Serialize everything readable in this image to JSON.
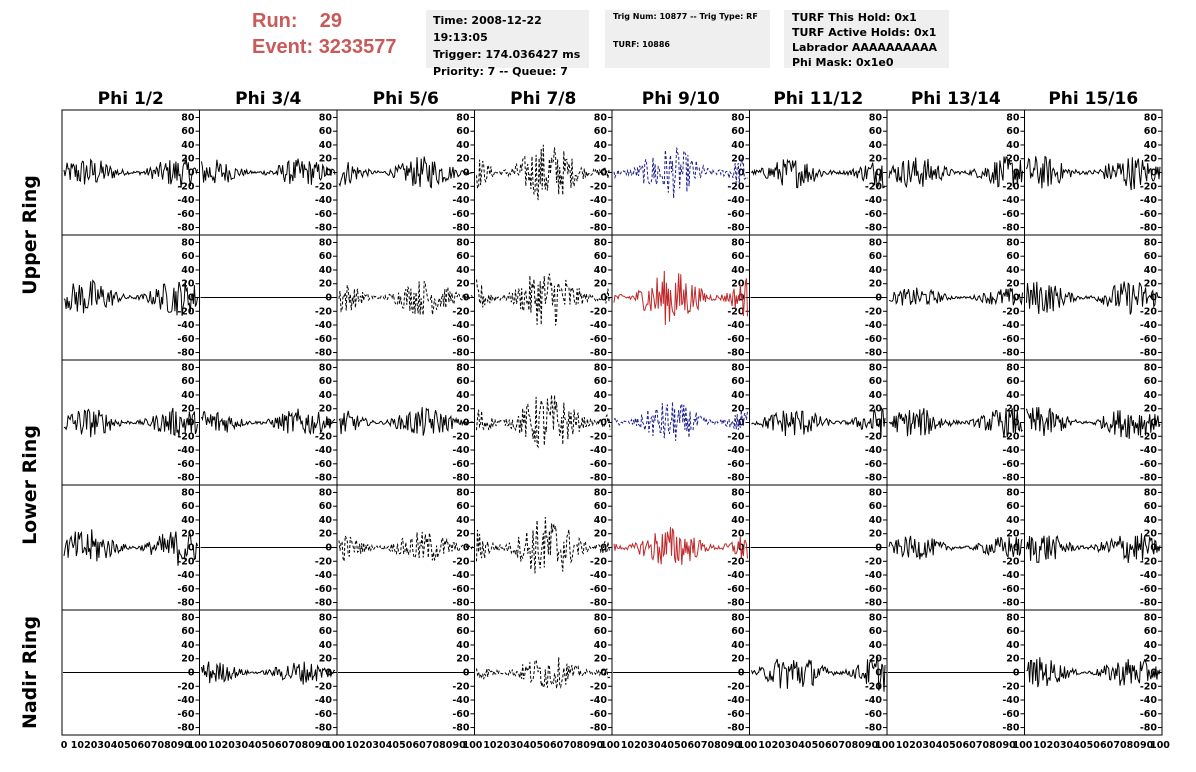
{
  "header": {
    "run_label": "Run:",
    "run_value": "29",
    "event_label": "Event:",
    "event_value": "3233577",
    "time": "Time: 2008-12-22 19:13:05",
    "trigger": "Trigger: 174.036427 ms",
    "priority": "Priority: 7 -- Queue: 7",
    "trig_num": "Trig Num: 10877 -- Trig Type: RF",
    "turf": "TURF: 10886",
    "turf_this_hold": "TURF This Hold: 0x1",
    "turf_active_holds": "TURF Active Holds: 0x1",
    "labrador": "Labrador AAAAAAAAAA",
    "phi_mask": "Phi Mask: 0x1e0",
    "accent_color": "#c85a5a"
  },
  "chart_data": {
    "type": "line",
    "phi_sectors": [
      "Phi 1/2",
      "Phi 3/4",
      "Phi 5/6",
      "Phi 7/8",
      "Phi 9/10",
      "Phi 11/12",
      "Phi 13/14",
      "Phi 15/16"
    ],
    "ring_labels": [
      "Upper Ring",
      "Lower Ring",
      "Nadir Ring"
    ],
    "xlim": [
      0,
      100
    ],
    "ylim": [
      -85,
      85
    ],
    "yticks": [
      80,
      60,
      40,
      20,
      0,
      -20,
      -40,
      -60,
      -80
    ],
    "xticks_first": [
      "0",
      "10",
      "20",
      "30",
      "40",
      "50",
      "60",
      "70",
      "80",
      "90",
      "100"
    ],
    "xticks_other": [
      "10",
      "20",
      "30",
      "40",
      "50",
      "60",
      "70",
      "80",
      "90",
      "100"
    ],
    "rows": [
      [
        {
          "amp": 14,
          "style": "solid",
          "color": "#000000"
        },
        {
          "amp": 13,
          "style": "solid",
          "color": "#000000"
        },
        {
          "amp": 15,
          "style": "solid",
          "color": "#000000"
        },
        {
          "amp": 28,
          "style": "dashed",
          "color": "#000000"
        },
        {
          "amp": 24,
          "style": "dashed",
          "color": "#1a1a8c"
        },
        {
          "amp": 14,
          "style": "solid",
          "color": "#000000"
        },
        {
          "amp": 15,
          "style": "solid",
          "color": "#000000"
        },
        {
          "amp": 16,
          "style": "solid",
          "color": "#000000"
        }
      ],
      [
        {
          "amp": 17,
          "style": "solid",
          "color": "#000000"
        },
        {
          "amp": 0,
          "style": "flat",
          "color": "#000000"
        },
        {
          "amp": 17,
          "style": "dashed",
          "color": "#000000"
        },
        {
          "amp": 28,
          "style": "dashed",
          "color": "#000000"
        },
        {
          "amp": 26,
          "style": "solid",
          "color": "#c0282a"
        },
        {
          "amp": 0,
          "style": "flat",
          "color": "#000000"
        },
        {
          "amp": 9,
          "style": "solid",
          "color": "#000000"
        },
        {
          "amp": 16,
          "style": "solid",
          "color": "#000000"
        }
      ],
      [
        {
          "amp": 14,
          "style": "solid",
          "color": "#000000"
        },
        {
          "amp": 13,
          "style": "solid",
          "color": "#000000"
        },
        {
          "amp": 14,
          "style": "solid",
          "color": "#000000"
        },
        {
          "amp": 28,
          "style": "dashed",
          "color": "#000000"
        },
        {
          "amp": 20,
          "style": "dashed",
          "color": "#1a1a8c"
        },
        {
          "amp": 14,
          "style": "solid",
          "color": "#000000"
        },
        {
          "amp": 14,
          "style": "solid",
          "color": "#000000"
        },
        {
          "amp": 15,
          "style": "solid",
          "color": "#000000"
        }
      ],
      [
        {
          "amp": 17,
          "style": "solid",
          "color": "#000000"
        },
        {
          "amp": 0,
          "style": "flat",
          "color": "#000000"
        },
        {
          "amp": 15,
          "style": "dashed",
          "color": "#000000"
        },
        {
          "amp": 30,
          "style": "dashed",
          "color": "#000000"
        },
        {
          "amp": 20,
          "style": "solid",
          "color": "#c0282a"
        },
        {
          "amp": 0,
          "style": "flat",
          "color": "#000000"
        },
        {
          "amp": 11,
          "style": "solid",
          "color": "#000000"
        },
        {
          "amp": 15,
          "style": "solid",
          "color": "#000000"
        }
      ],
      [
        {
          "amp": 0,
          "style": "flat",
          "color": "#000000"
        },
        {
          "amp": 11,
          "style": "solid",
          "color": "#000000"
        },
        {
          "amp": 0,
          "style": "flat",
          "color": "#000000"
        },
        {
          "amp": 16,
          "style": "dashed",
          "color": "#000000"
        },
        {
          "amp": 0,
          "style": "flat",
          "color": "#000000"
        },
        {
          "amp": 18,
          "style": "solid",
          "color": "#000000"
        },
        {
          "amp": 0,
          "style": "flat",
          "color": "#000000"
        },
        {
          "amp": 14,
          "style": "solid",
          "color": "#000000"
        }
      ]
    ]
  }
}
